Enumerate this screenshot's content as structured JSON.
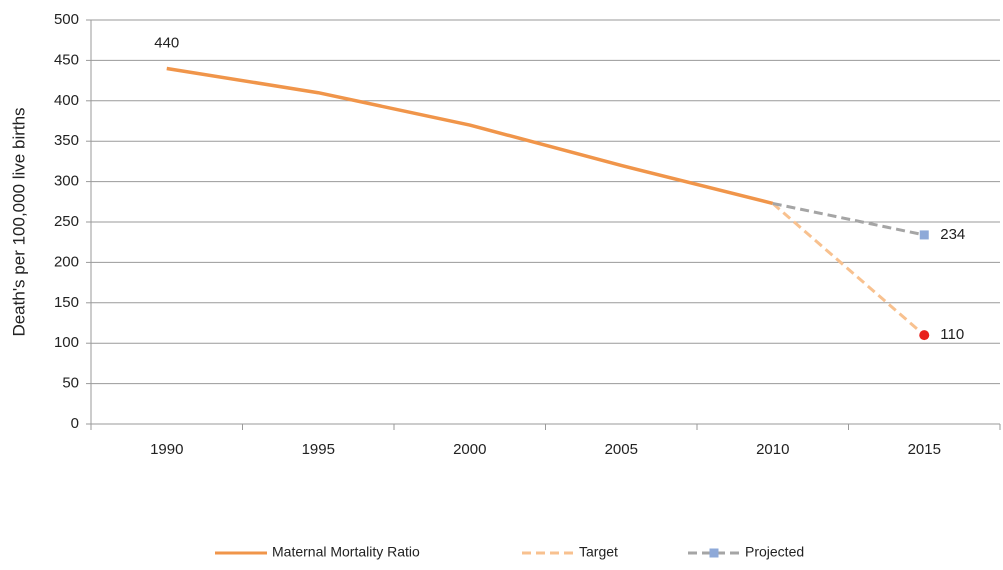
{
  "chart_data": {
    "type": "line",
    "y_label": "Death's per 100,000 live births",
    "categories": [
      "1990",
      "1995",
      "2000",
      "2005",
      "2010",
      "2015"
    ],
    "series": [
      {
        "name": "Maternal Mortality Ratio",
        "color": "#f0954a",
        "dash": false,
        "values": [
          440,
          410,
          370,
          320,
          273,
          null
        ],
        "labeled": [
          0
        ]
      },
      {
        "name": "Target",
        "color": "#f8c18f",
        "dash": true,
        "marker": "circle",
        "marker_color": "#e8201c",
        "values": [
          null,
          null,
          null,
          null,
          273,
          110
        ],
        "labeled": [
          5
        ]
      },
      {
        "name": "Projected",
        "color": "#a5a5a5",
        "dash": true,
        "marker": "square",
        "marker_color": "#8ea9d8",
        "values": [
          null,
          null,
          null,
          null,
          273,
          234
        ],
        "labeled": [
          5
        ]
      }
    ],
    "ylim": [
      0,
      500
    ],
    "yticks": [
      0,
      50,
      100,
      150,
      200,
      250,
      300,
      350,
      400,
      450,
      500
    ],
    "grid": true,
    "legend": "bottom"
  }
}
